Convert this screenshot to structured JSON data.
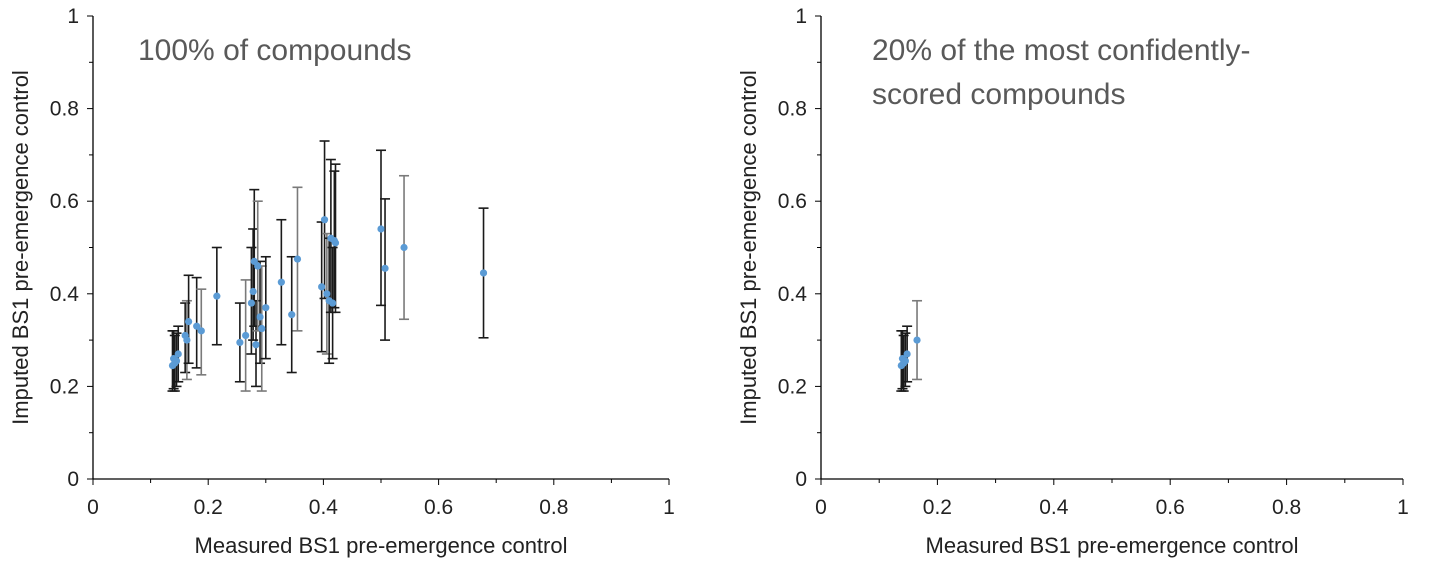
{
  "colors": {
    "point": "#5b9bd5",
    "error_bar_dark": "#1a1a1a",
    "error_bar_light": "#7a7a7a",
    "axis": "#000000"
  },
  "chart_data": [
    {
      "type": "scatter",
      "title_lines": [
        "100% of compounds"
      ],
      "xlabel": "Measured BS1 pre-emergence control",
      "ylabel": "Imputed BS1 pre-emergence control",
      "xlim": [
        0,
        1
      ],
      "ylim": [
        0,
        1
      ],
      "x_ticks": [
        0,
        0.2,
        0.4,
        0.6,
        0.8,
        1
      ],
      "y_ticks": [
        0,
        0.2,
        0.4,
        0.6,
        0.8,
        1
      ],
      "x_tick_labels": [
        "0",
        "0.2",
        "0.4",
        "0.6",
        "0.8",
        "1"
      ],
      "y_tick_labels": [
        "0",
        "0.2",
        "0.4",
        "0.6",
        "0.8",
        "1"
      ],
      "grid": false,
      "points": [
        {
          "x": 0.138,
          "y": 0.245,
          "low": 0.19,
          "high": 0.32,
          "shade": "dark"
        },
        {
          "x": 0.14,
          "y": 0.26,
          "low": 0.195,
          "high": 0.32,
          "shade": "dark"
        },
        {
          "x": 0.142,
          "y": 0.25,
          "low": 0.19,
          "high": 0.31,
          "shade": "dark"
        },
        {
          "x": 0.145,
          "y": 0.255,
          "low": 0.2,
          "high": 0.315,
          "shade": "dark"
        },
        {
          "x": 0.148,
          "y": 0.27,
          "low": 0.21,
          "high": 0.33,
          "shade": "dark"
        },
        {
          "x": 0.16,
          "y": 0.31,
          "low": 0.23,
          "high": 0.38,
          "shade": "dark"
        },
        {
          "x": 0.163,
          "y": 0.3,
          "low": 0.215,
          "high": 0.385,
          "shade": "light"
        },
        {
          "x": 0.166,
          "y": 0.34,
          "low": 0.25,
          "high": 0.44,
          "shade": "dark"
        },
        {
          "x": 0.18,
          "y": 0.33,
          "low": 0.24,
          "high": 0.435,
          "shade": "dark"
        },
        {
          "x": 0.188,
          "y": 0.32,
          "low": 0.225,
          "high": 0.41,
          "shade": "light"
        },
        {
          "x": 0.215,
          "y": 0.395,
          "low": 0.29,
          "high": 0.5,
          "shade": "dark"
        },
        {
          "x": 0.255,
          "y": 0.295,
          "low": 0.21,
          "high": 0.38,
          "shade": "dark"
        },
        {
          "x": 0.265,
          "y": 0.31,
          "low": 0.19,
          "high": 0.43,
          "shade": "light"
        },
        {
          "x": 0.275,
          "y": 0.38,
          "low": 0.27,
          "high": 0.5,
          "shade": "dark"
        },
        {
          "x": 0.278,
          "y": 0.405,
          "low": 0.3,
          "high": 0.54,
          "shade": "dark"
        },
        {
          "x": 0.28,
          "y": 0.47,
          "low": 0.33,
          "high": 0.625,
          "shade": "dark"
        },
        {
          "x": 0.283,
          "y": 0.29,
          "low": 0.2,
          "high": 0.385,
          "shade": "dark"
        },
        {
          "x": 0.286,
          "y": 0.46,
          "low": 0.32,
          "high": 0.6,
          "shade": "light"
        },
        {
          "x": 0.29,
          "y": 0.35,
          "low": 0.25,
          "high": 0.47,
          "shade": "dark"
        },
        {
          "x": 0.293,
          "y": 0.325,
          "low": 0.19,
          "high": 0.46,
          "shade": "light"
        },
        {
          "x": 0.3,
          "y": 0.37,
          "low": 0.26,
          "high": 0.48,
          "shade": "dark"
        },
        {
          "x": 0.327,
          "y": 0.425,
          "low": 0.29,
          "high": 0.56,
          "shade": "dark"
        },
        {
          "x": 0.345,
          "y": 0.355,
          "low": 0.23,
          "high": 0.48,
          "shade": "dark"
        },
        {
          "x": 0.355,
          "y": 0.475,
          "low": 0.32,
          "high": 0.63,
          "shade": "light"
        },
        {
          "x": 0.397,
          "y": 0.415,
          "low": 0.275,
          "high": 0.555,
          "shade": "dark"
        },
        {
          "x": 0.402,
          "y": 0.56,
          "low": 0.39,
          "high": 0.73,
          "shade": "dark"
        },
        {
          "x": 0.406,
          "y": 0.4,
          "low": 0.27,
          "high": 0.53,
          "shade": "light"
        },
        {
          "x": 0.41,
          "y": 0.385,
          "low": 0.25,
          "high": 0.52,
          "shade": "dark"
        },
        {
          "x": 0.413,
          "y": 0.52,
          "low": 0.36,
          "high": 0.69,
          "shade": "dark"
        },
        {
          "x": 0.416,
          "y": 0.38,
          "low": 0.26,
          "high": 0.5,
          "shade": "dark"
        },
        {
          "x": 0.419,
          "y": 0.515,
          "low": 0.37,
          "high": 0.665,
          "shade": "dark"
        },
        {
          "x": 0.421,
          "y": 0.51,
          "low": 0.36,
          "high": 0.68,
          "shade": "dark"
        },
        {
          "x": 0.5,
          "y": 0.54,
          "low": 0.375,
          "high": 0.71,
          "shade": "dark"
        },
        {
          "x": 0.507,
          "y": 0.455,
          "low": 0.3,
          "high": 0.605,
          "shade": "dark"
        },
        {
          "x": 0.54,
          "y": 0.5,
          "low": 0.345,
          "high": 0.655,
          "shade": "light"
        },
        {
          "x": 0.678,
          "y": 0.445,
          "low": 0.305,
          "high": 0.585,
          "shade": "dark"
        }
      ]
    },
    {
      "type": "scatter",
      "title_lines": [
        "20% of the most confidently-",
        "scored compounds"
      ],
      "xlabel": "Measured BS1 pre-emergence control",
      "ylabel": "Imputed BS1 pre-emergence control",
      "xlim": [
        0,
        1
      ],
      "ylim": [
        0,
        1
      ],
      "x_ticks": [
        0,
        0.2,
        0.4,
        0.6,
        0.8,
        1
      ],
      "y_ticks": [
        0,
        0.2,
        0.4,
        0.6,
        0.8,
        1
      ],
      "x_tick_labels": [
        "0",
        "0.2",
        "0.4",
        "0.6",
        "0.8",
        "1"
      ],
      "y_tick_labels": [
        "0",
        "0.2",
        "0.4",
        "0.6",
        "0.8",
        "1"
      ],
      "grid": false,
      "points": [
        {
          "x": 0.138,
          "y": 0.245,
          "low": 0.19,
          "high": 0.32,
          "shade": "dark"
        },
        {
          "x": 0.14,
          "y": 0.26,
          "low": 0.195,
          "high": 0.32,
          "shade": "dark"
        },
        {
          "x": 0.142,
          "y": 0.25,
          "low": 0.19,
          "high": 0.31,
          "shade": "dark"
        },
        {
          "x": 0.145,
          "y": 0.255,
          "low": 0.2,
          "high": 0.315,
          "shade": "dark"
        },
        {
          "x": 0.148,
          "y": 0.27,
          "low": 0.21,
          "high": 0.33,
          "shade": "dark"
        },
        {
          "x": 0.165,
          "y": 0.3,
          "low": 0.215,
          "high": 0.385,
          "shade": "light"
        }
      ]
    }
  ]
}
